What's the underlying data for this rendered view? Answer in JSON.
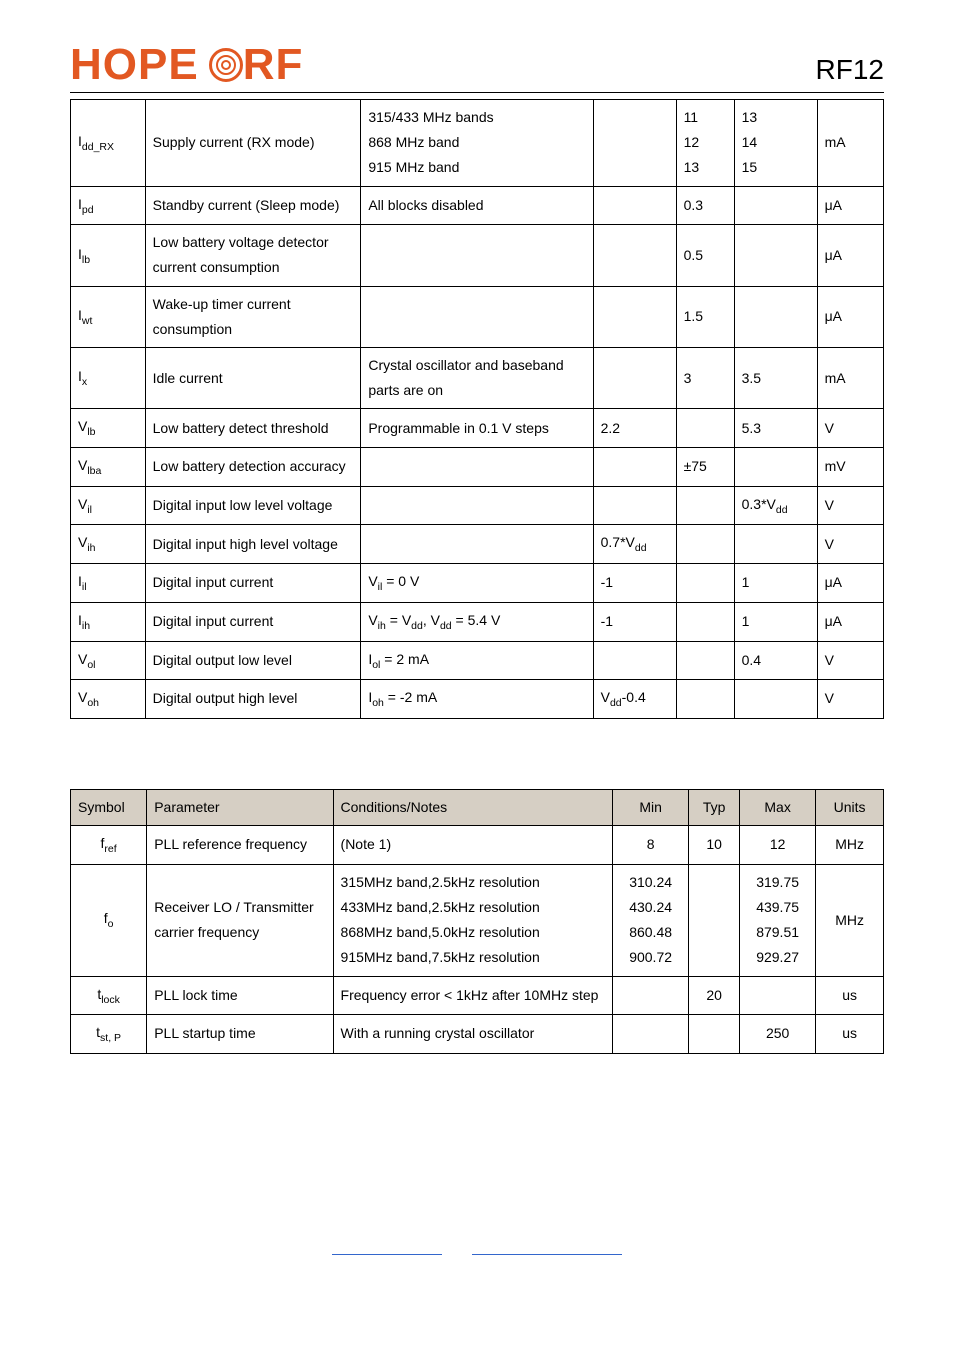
{
  "header": {
    "logo_text_1": "HOPE",
    "logo_text_2": "RF",
    "doc_id": "RF12"
  },
  "table1": {
    "rows": [
      {
        "sym": "I<sub>dd_RX</sub>",
        "param": "Supply current (RX mode)",
        "cond": "315/433 MHz bands\n868 MHz band\n915 MHz band",
        "min": "",
        "typ": "11\n12\n13",
        "max": "13\n14\n15",
        "unit": "mA"
      },
      {
        "sym": "I<sub>pd</sub>",
        "param": "Standby current (Sleep mode)",
        "cond": "All blocks disabled",
        "min": "",
        "typ": "0.3",
        "max": "",
        "unit": "μA"
      },
      {
        "sym": "I<sub>lb</sub>",
        "param": "Low battery voltage detector current consumption",
        "cond": "",
        "min": "",
        "typ": "0.5",
        "max": "",
        "unit": "μA"
      },
      {
        "sym": "I<sub>wt</sub>",
        "param": "Wake-up timer current consumption",
        "cond": "",
        "min": "",
        "typ": "1.5",
        "max": "",
        "unit": "μA"
      },
      {
        "sym": "I<sub>x</sub>",
        "param": "Idle current",
        "cond": "Crystal oscillator and baseband parts are on",
        "min": "",
        "typ": "3",
        "max": "3.5",
        "unit": "mA"
      },
      {
        "sym": "V<sub>lb</sub>",
        "param": "Low battery detect threshold",
        "cond": "Programmable in 0.1 V steps",
        "min": "2.2",
        "typ": "",
        "max": "5.3",
        "unit": "V"
      },
      {
        "sym": "V<sub>lba</sub>",
        "param": "Low battery detection accuracy",
        "cond": "",
        "min": "",
        "typ": "±75",
        "max": "",
        "unit": "mV"
      },
      {
        "sym": "V<sub>il</sub>",
        "param": "Digital input low level voltage",
        "cond": "",
        "min": "",
        "typ": "",
        "max": "0.3*V<sub>dd</sub>",
        "unit": "V"
      },
      {
        "sym": "V<sub>ih</sub>",
        "param": "Digital input high level voltage",
        "cond": "",
        "min": "0.7*V<sub>dd</sub>",
        "typ": "",
        "max": "",
        "unit": "V"
      },
      {
        "sym": "I<sub>il</sub>",
        "param": "Digital input current",
        "cond": "V<sub>il</sub> = 0 V",
        "min": "-1",
        "typ": "",
        "max": "1",
        "unit": "μA"
      },
      {
        "sym": "I<sub>ih</sub>",
        "param": "Digital input current",
        "cond": "V<sub>ih</sub> = V<sub>dd</sub>, V<sub>dd</sub> = 5.4 V",
        "min": "-1",
        "typ": "",
        "max": "1",
        "unit": "μA"
      },
      {
        "sym": "V<sub>ol</sub>",
        "param": "Digital output low level",
        "cond": "I<sub>ol</sub> = 2 mA",
        "min": "",
        "typ": "",
        "max": "0.4",
        "unit": "V"
      },
      {
        "sym": "V<sub>oh</sub>",
        "param": "Digital output high level",
        "cond": "I<sub>oh</sub> = -2 mA",
        "min": "V<sub>dd</sub>-0.4",
        "typ": "",
        "max": "",
        "unit": "V"
      }
    ]
  },
  "table2": {
    "headers": {
      "sym": "Symbol",
      "param": "Parameter",
      "cond": "Conditions/Notes",
      "min": "Min",
      "typ": "Typ",
      "max": "Max",
      "unit": "Units"
    },
    "rows": [
      {
        "sym": "f<sub>ref</sub>",
        "param": "PLL reference frequency",
        "cond": "(Note 1)",
        "min": "8",
        "typ": "10",
        "max": "12",
        "unit": "MHz",
        "centerSym": true
      },
      {
        "sym": "f<sub>o</sub>",
        "param": "Receiver LO / Transmitter carrier frequency",
        "cond": "315MHz band,2.5kHz resolution\n433MHz band,2.5kHz resolution\n868MHz band,5.0kHz resolution\n915MHz band,7.5kHz resolution",
        "min": "310.24\n430.24\n860.48\n900.72",
        "typ": "",
        "max": "319.75\n439.75\n879.51\n929.27",
        "unit": "MHz",
        "centerSym": true
      },
      {
        "sym": "t<sub>lock</sub>",
        "param": "PLL lock time",
        "cond": "Frequency error < 1kHz after 10MHz step",
        "min": "",
        "typ": "20",
        "max": "",
        "unit": "us",
        "centerSym": true
      },
      {
        "sym": "t<sub>st, P</sub>",
        "param": "PLL startup time",
        "cond": "With a running crystal oscillator",
        "min": "",
        "typ": "",
        "max": "250",
        "unit": "us",
        "centerSym": true
      }
    ]
  },
  "colors": {
    "header_bg": "#d6cfc4",
    "border": "#000000",
    "logo": "#e25822",
    "footer_line": "#3366cc"
  }
}
